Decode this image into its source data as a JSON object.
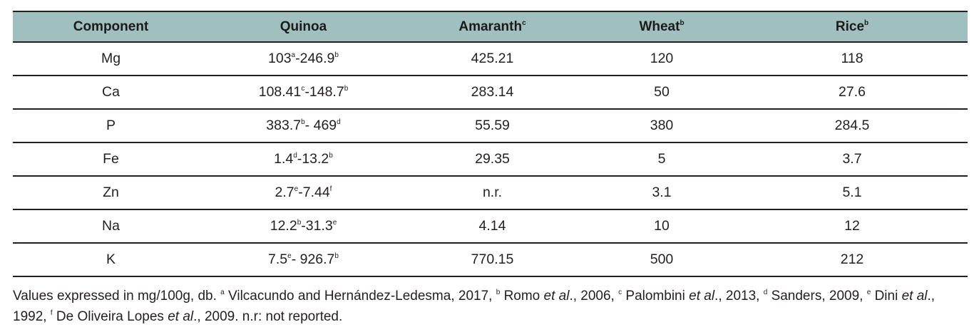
{
  "table": {
    "headers": [
      {
        "label": "Component",
        "sup": ""
      },
      {
        "label": "Quinoa",
        "sup": ""
      },
      {
        "label": "Amaranth",
        "sup": "c"
      },
      {
        "label": "Wheat",
        "sup": "b"
      },
      {
        "label": "Rice",
        "sup": "b"
      }
    ],
    "rows": [
      {
        "component": "Mg",
        "quinoa": {
          "low": "103",
          "low_sup": "a",
          "sep": "-",
          "high": "246.9",
          "high_sup": "b"
        },
        "amaranth": "425.21",
        "wheat": "120",
        "rice": "118"
      },
      {
        "component": "Ca",
        "quinoa": {
          "low": "108.41",
          "low_sup": "c",
          "sep": "-",
          "high": "148.7",
          "high_sup": "b"
        },
        "amaranth": "283.14",
        "wheat": "50",
        "rice": "27.6"
      },
      {
        "component": "P",
        "quinoa": {
          "low": "383.7",
          "low_sup": "b",
          "sep": "- ",
          "high": "469",
          "high_sup": "d"
        },
        "amaranth": "55.59",
        "wheat": "380",
        "rice": "284.5"
      },
      {
        "component": "Fe",
        "quinoa": {
          "low": "1.4",
          "low_sup": "d",
          "sep": "-",
          "high": "13.2",
          "high_sup": "b"
        },
        "amaranth": "29.35",
        "wheat": "5",
        "rice": "3.7"
      },
      {
        "component": "Zn",
        "quinoa": {
          "low": "2.7",
          "low_sup": "e",
          "sep": "-",
          "high": "7.44",
          "high_sup": "f"
        },
        "amaranth": "n.r.",
        "wheat": "3.1",
        "rice": "5.1"
      },
      {
        "component": "Na",
        "quinoa": {
          "low": "12.2",
          "low_sup": "b",
          "sep": "-",
          "high": "31.3",
          "high_sup": "e"
        },
        "amaranth": "4.14",
        "wheat": "10",
        "rice": "12"
      },
      {
        "component": "K",
        "quinoa": {
          "low": "7.5",
          "low_sup": "e",
          "sep": "- ",
          "high": "926.7",
          "high_sup": "b"
        },
        "amaranth": "770.15",
        "wheat": "500",
        "rice": "212"
      }
    ]
  },
  "footnote": {
    "intro": "Values expressed in mg/100g, db.",
    "refs": [
      {
        "sup": "a",
        "pre": "Vilcacundo and Hernández-Ledesma, 2017,",
        "etal": "",
        "post": ""
      },
      {
        "sup": "b",
        "pre": "Romo",
        "etal": "et al",
        "post": "., 2006,"
      },
      {
        "sup": "c",
        "pre": "Palombini",
        "etal": "et al",
        "post": "., 2013,"
      },
      {
        "sup": "d",
        "pre": "Sanders, 2009,",
        "etal": "",
        "post": ""
      },
      {
        "sup": "e",
        "pre": "Dini",
        "etal": "et al",
        "post": "., 1992,"
      },
      {
        "sup": "f",
        "pre": "De Oliveira Lopes",
        "etal": "et al",
        "post": "., 2009."
      }
    ],
    "abbrev": "n.r: not reported."
  }
}
